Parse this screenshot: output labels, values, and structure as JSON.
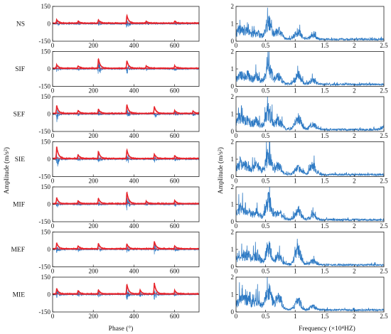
{
  "chart_data": {
    "type": "line",
    "layout": "7 rows x 2 columns of subplots",
    "conditions": [
      "NS",
      "SIF",
      "SEF",
      "SIE",
      "MIF",
      "MEF",
      "MIE"
    ],
    "time_domain": {
      "xlabel": "Phase (°)",
      "ylabel": "Amplitude (m/s²)",
      "xlim": [
        0,
        720
      ],
      "ylim": [
        -150,
        150
      ],
      "xticks": [
        "0",
        "200",
        "400",
        "600"
      ],
      "yticks": [
        "-150",
        "0",
        "150"
      ],
      "series_colors": {
        "vibration": "#2e7ac4",
        "envelope": "#e8232a"
      },
      "impact_phases_deg": {
        "NS": [
          [
            20,
            35
          ],
          [
            125,
            20
          ],
          [
            225,
            35
          ],
          [
            365,
            80
          ],
          [
            460,
            20
          ],
          [
            600,
            20
          ]
        ],
        "SIF": [
          [
            20,
            35
          ],
          [
            125,
            25
          ],
          [
            225,
            100
          ],
          [
            365,
            80
          ],
          [
            460,
            25
          ],
          [
            600,
            25
          ]
        ],
        "SEF": [
          [
            20,
            80
          ],
          [
            125,
            30
          ],
          [
            225,
            45
          ],
          [
            365,
            90
          ],
          [
            500,
            70
          ],
          [
            600,
            30
          ],
          [
            690,
            25
          ]
        ],
        "SIE": [
          [
            20,
            120
          ],
          [
            125,
            40
          ],
          [
            225,
            75
          ],
          [
            365,
            90
          ],
          [
            500,
            45
          ],
          [
            600,
            30
          ]
        ],
        "MIF": [
          [
            20,
            60
          ],
          [
            125,
            30
          ],
          [
            225,
            55
          ],
          [
            365,
            120
          ],
          [
            460,
            25
          ],
          [
            600,
            30
          ]
        ],
        "MEF": [
          [
            20,
            60
          ],
          [
            125,
            30
          ],
          [
            225,
            55
          ],
          [
            365,
            50
          ],
          [
            500,
            75
          ],
          [
            600,
            30
          ]
        ],
        "MIE": [
          [
            20,
            55
          ],
          [
            125,
            35
          ],
          [
            225,
            40
          ],
          [
            365,
            100
          ],
          [
            430,
            40
          ],
          [
            500,
            110
          ],
          [
            600,
            35
          ]
        ]
      }
    },
    "frequency_domain": {
      "xlabel": "Frequency (×10⁴HZ)",
      "ylabel": "Amplitude (m/s²)",
      "xlim": [
        0,
        2.5
      ],
      "ylim": [
        0,
        2
      ],
      "xticks": [
        "0",
        "0.5",
        "1",
        "1.5",
        "2",
        "2.5"
      ],
      "yticks": [
        "0",
        "1",
        "2"
      ],
      "series_color": "#2e7ac4",
      "spectral_peaks": {
        "NS": [
          [
            0.08,
            0.7
          ],
          [
            0.2,
            0.6
          ],
          [
            0.35,
            0.6
          ],
          [
            0.55,
            1.8
          ],
          [
            0.72,
            0.9
          ],
          [
            1.05,
            0.8
          ],
          [
            1.3,
            0.4
          ]
        ],
        "SIF": [
          [
            0.08,
            0.8
          ],
          [
            0.2,
            0.7
          ],
          [
            0.35,
            0.7
          ],
          [
            0.55,
            1.9
          ],
          [
            0.72,
            0.8
          ],
          [
            1.05,
            1.0
          ],
          [
            1.3,
            0.4
          ]
        ],
        "SEF": [
          [
            0.08,
            0.9
          ],
          [
            0.2,
            0.7
          ],
          [
            0.35,
            0.8
          ],
          [
            0.55,
            2.0
          ],
          [
            0.72,
            0.9
          ],
          [
            1.05,
            1.3
          ],
          [
            1.3,
            0.6
          ],
          [
            2.5,
            0.3
          ]
        ],
        "SIE": [
          [
            0.08,
            0.8
          ],
          [
            0.2,
            0.7
          ],
          [
            0.35,
            0.9
          ],
          [
            0.55,
            2.0
          ],
          [
            0.72,
            1.0
          ],
          [
            1.05,
            0.8
          ],
          [
            1.3,
            1.0
          ]
        ],
        "MIF": [
          [
            0.08,
            0.9
          ],
          [
            0.2,
            0.7
          ],
          [
            0.35,
            0.7
          ],
          [
            0.55,
            2.0
          ],
          [
            0.72,
            0.8
          ],
          [
            1.05,
            1.0
          ],
          [
            1.3,
            0.5
          ]
        ],
        "MEF": [
          [
            0.08,
            0.8
          ],
          [
            0.2,
            0.8
          ],
          [
            0.35,
            0.9
          ],
          [
            0.55,
            1.8
          ],
          [
            0.72,
            0.9
          ],
          [
            1.05,
            1.6
          ],
          [
            1.3,
            0.4
          ]
        ],
        "MIE": [
          [
            0.08,
            0.9
          ],
          [
            0.2,
            0.8
          ],
          [
            0.35,
            1.0
          ],
          [
            0.55,
            2.0
          ],
          [
            0.72,
            1.4
          ],
          [
            1.05,
            1.0
          ],
          [
            1.3,
            0.4
          ]
        ]
      }
    }
  }
}
